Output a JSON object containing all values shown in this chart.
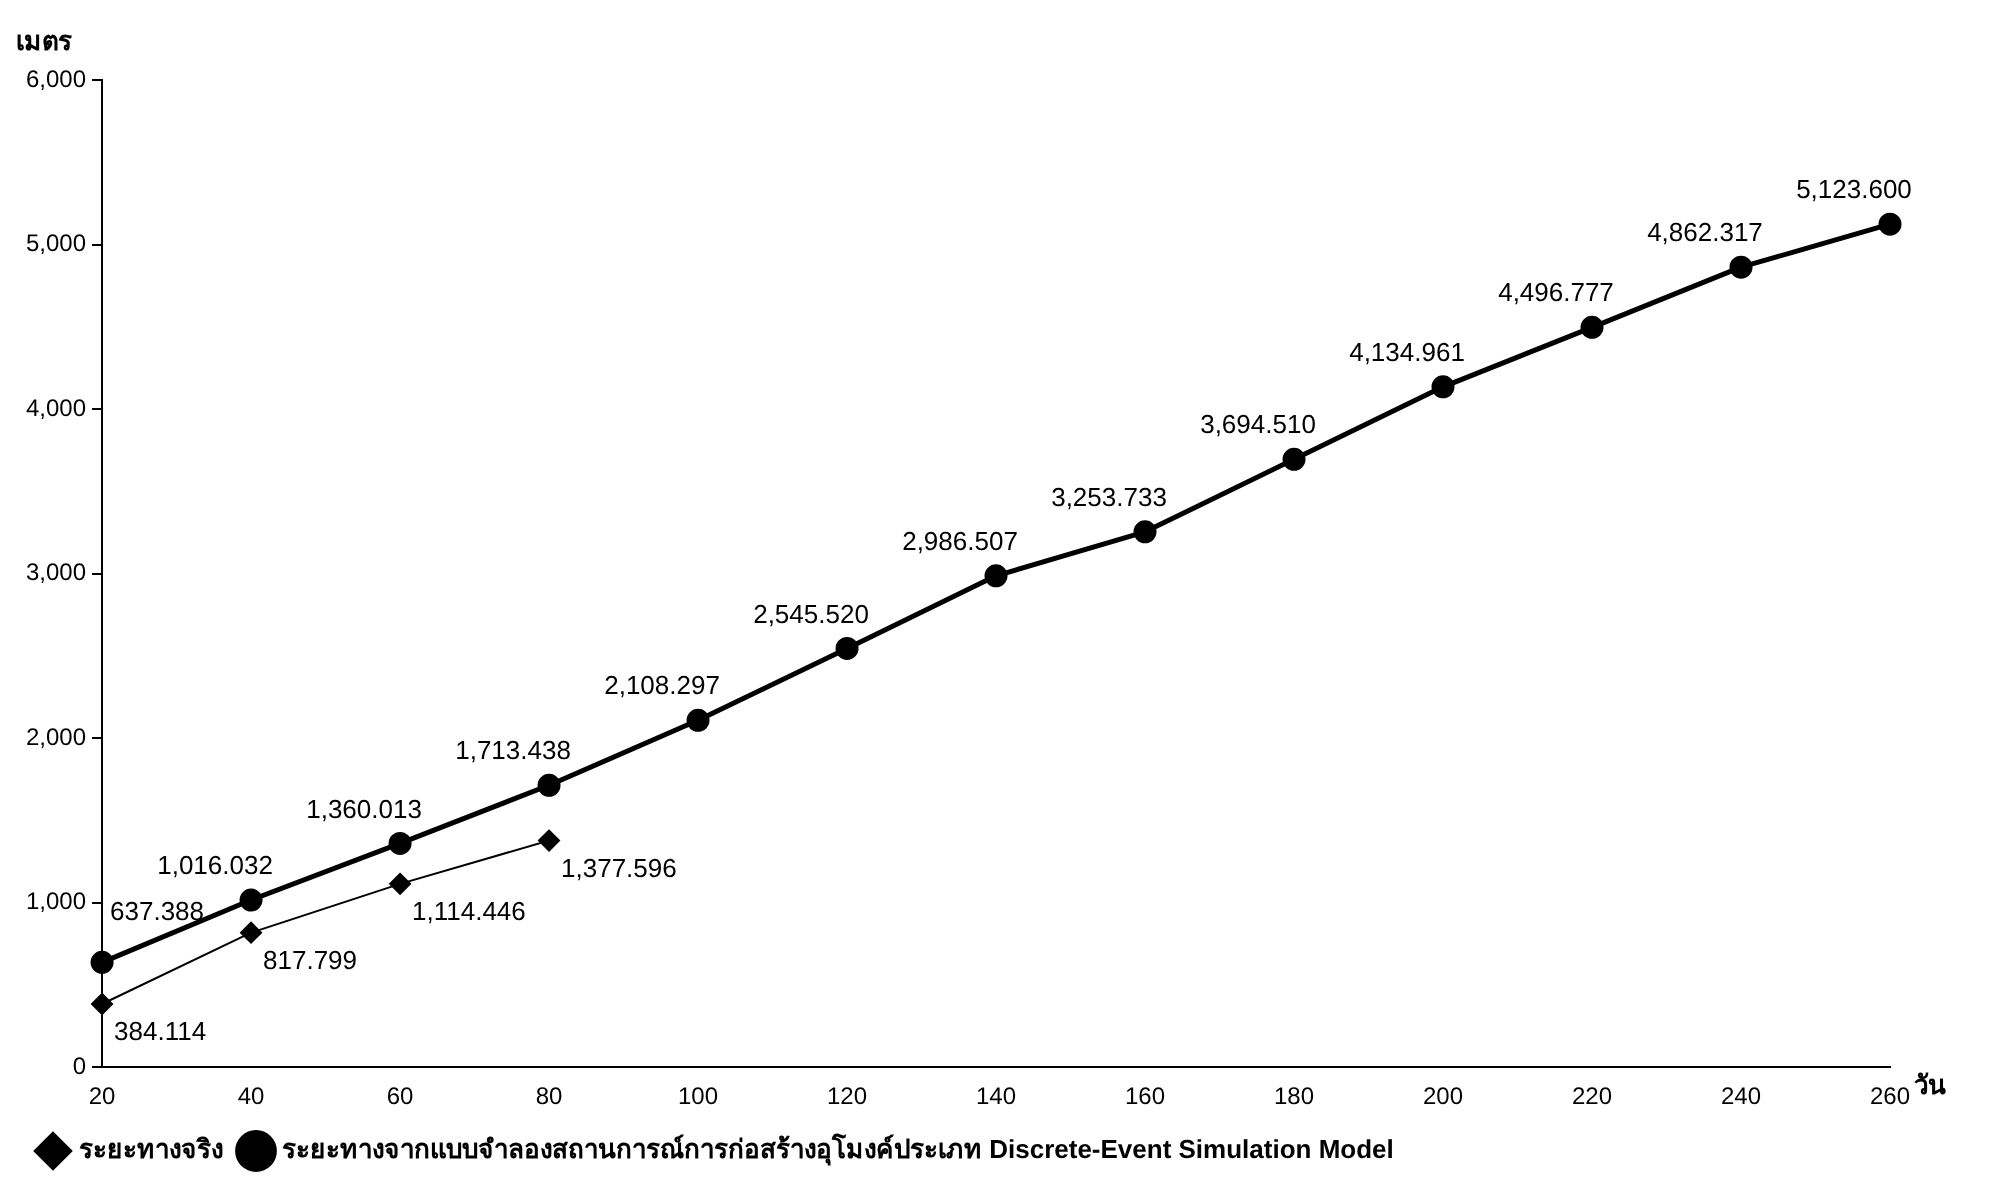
{
  "chart_data": {
    "type": "line",
    "ylabel": "เมตร",
    "xlabel": "วัน",
    "categories": [
      "20",
      "40",
      "60",
      "80",
      "100",
      "120",
      "140",
      "160",
      "180",
      "200",
      "220",
      "240",
      "260"
    ],
    "ylim": [
      0,
      6000
    ],
    "yticks": [
      {
        "value": 0,
        "label": "0"
      },
      {
        "value": 1000,
        "label": "1,000"
      },
      {
        "value": 2000,
        "label": "2,000"
      },
      {
        "value": 3000,
        "label": "3,000"
      },
      {
        "value": 4000,
        "label": "4,000"
      },
      {
        "value": 5000,
        "label": "5,000"
      },
      {
        "value": 6000,
        "label": "6,000"
      }
    ],
    "grid": false,
    "legend": "bottom left",
    "series": [
      {
        "name": "ระยะทางจริง",
        "color": "#000000",
        "marker": "diamond",
        "values": [
          384.114,
          817.799,
          1114.446,
          1377.596,
          null,
          null,
          null,
          null,
          null,
          null,
          null,
          null,
          null
        ],
        "value_labels": [
          "384.114",
          "817.799",
          "1,114.446",
          "1,377.596",
          null,
          null,
          null,
          null,
          null,
          null,
          null,
          null,
          null
        ]
      },
      {
        "name": "ระยะทางจากแบบจำลองสถานการณ์การก่อสร้างอุโมงค์ประเภท Discrete-Event Simulation Model",
        "color": "#000000",
        "marker": "circle",
        "values": [
          637.388,
          1016.032,
          1360.013,
          1713.438,
          2108.297,
          2545.52,
          2986.507,
          3253.733,
          3694.51,
          4134.961,
          4496.777,
          4862.317,
          5123.6
        ],
        "value_labels": [
          "637.388",
          "1,016.032",
          "1,360.013",
          "1,713.438",
          "2,108.297",
          "2,545.520",
          "2,986.507",
          "3,253.733",
          "3,694.510",
          "4,134.961",
          "4,496.777",
          "4,862.317",
          "5,123.600"
        ]
      }
    ]
  }
}
